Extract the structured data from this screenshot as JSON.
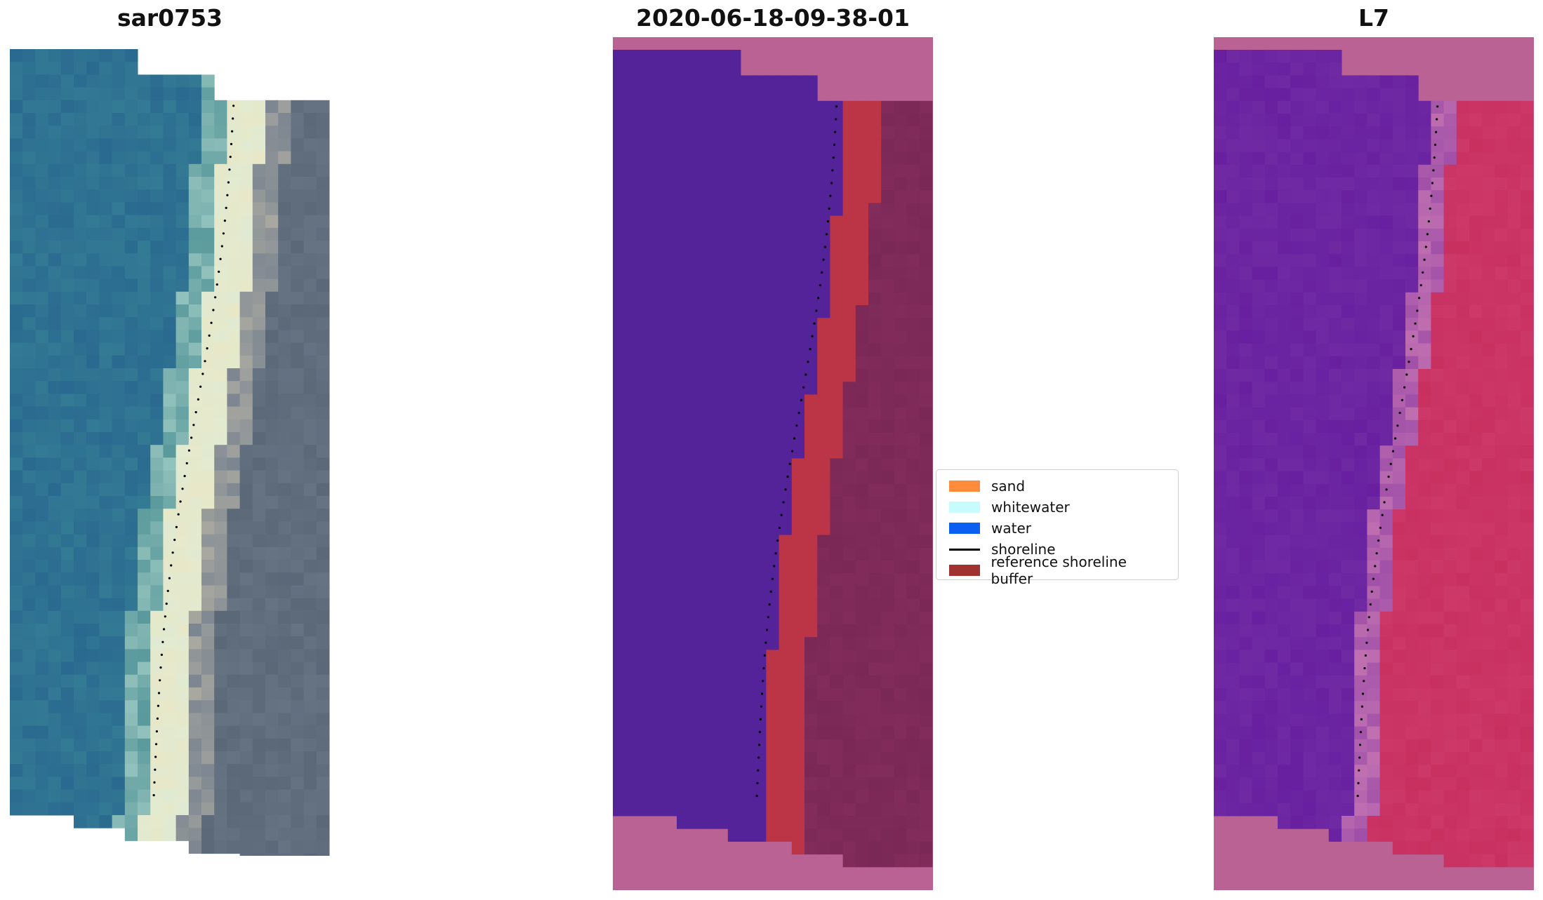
{
  "panels": [
    {
      "title": "sar0753"
    },
    {
      "title": "2020-06-18-09-38-01"
    },
    {
      "title": "L7"
    }
  ],
  "legend": {
    "items": [
      {
        "label": "sand",
        "kind": "patch",
        "color": "#ff8c3c"
      },
      {
        "label": "whitewater",
        "kind": "patch",
        "color": "#c8fcfc"
      },
      {
        "label": "water",
        "kind": "patch",
        "color": "#0a5ef0"
      },
      {
        "label": "shoreline",
        "kind": "line",
        "color": "#000000"
      },
      {
        "label": "reference shoreline buffer",
        "kind": "patch",
        "color": "#a03232"
      }
    ]
  },
  "colors": {
    "rgb_water": "#2a6a90",
    "rgb_surf": "#e8e8c8",
    "rgb_land": "#5a6878",
    "class_water": "#552399",
    "class_buffer": "#bb3546",
    "class_land": "#7a2856",
    "nodata": "#bb6294",
    "l7_water": "#6820a0",
    "l7_land": "#c83060"
  }
}
